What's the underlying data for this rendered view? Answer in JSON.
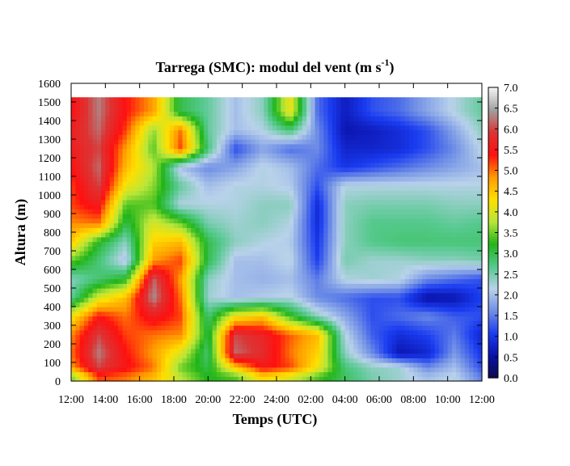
{
  "chart_data": {
    "type": "heatmap",
    "title": "Tarrega (SMC): modul del vent (m s",
    "title_sup": "-1",
    "title_end": ")",
    "xlabel": "Temps (UTC)",
    "ylabel": "Altura (m)",
    "x_ticks": [
      "12:00",
      "14:00",
      "16:00",
      "18:00",
      "20:00",
      "22:00",
      "24:00",
      "02:00",
      "04:00",
      "06:00",
      "08:00",
      "10:00",
      "12:00"
    ],
    "y_ticks": [
      "0",
      "100",
      "200",
      "300",
      "400",
      "500",
      "600",
      "700",
      "800",
      "900",
      "1000",
      "1100",
      "1200",
      "1300",
      "1400",
      "1500",
      "1600"
    ],
    "ylim": [
      0,
      1600
    ],
    "data_top_m": 1525,
    "colorbar": {
      "ticks": [
        "0.0",
        "0.5",
        "1.0",
        "1.5",
        "2.0",
        "2.5",
        "3.0",
        "3.5",
        "4.0",
        "4.5",
        "5.0",
        "5.5",
        "6.0",
        "6.5",
        "7.0"
      ],
      "range": [
        0,
        7
      ],
      "colors": [
        "#0c0a4a",
        "#0a10a8",
        "#1a3cf0",
        "#6f8ee6",
        "#b9d2ea",
        "#54c98c",
        "#22b51a",
        "#b8e63a",
        "#ffe000",
        "#ff9a00",
        "#ff1010",
        "#dc3434",
        "#a0a0a0",
        "#f4f4f4"
      ]
    },
    "x_hours": [
      0,
      2,
      4,
      6,
      8,
      10,
      12,
      14,
      16,
      18,
      20,
      22,
      24
    ],
    "z_description_rows_m": [
      25,
      75,
      150,
      250,
      350,
      450,
      550,
      650,
      750,
      850,
      950,
      1050,
      1150,
      1250,
      1350,
      1450
    ],
    "z_rows": [
      [
        3.5,
        5.2,
        5.0,
        4.6,
        3.8,
        3.2,
        3.4,
        4.4,
        4.0,
        3.4,
        2.9,
        2.5,
        2.3,
        2.0,
        2.2,
        1.5
      ],
      [
        4.8,
        6.0,
        5.5,
        5.0,
        3.5,
        3.0,
        4.5,
        5.5,
        5.2,
        4.2,
        2.8,
        2.4,
        2.3,
        1.6,
        2.0,
        1.2
      ],
      [
        5.0,
        6.3,
        5.4,
        4.8,
        4.0,
        2.8,
        6.2,
        5.8,
        5.0,
        4.4,
        2.4,
        1.6,
        0.6,
        0.8,
        1.7,
        1.0
      ],
      [
        4.9,
        6.0,
        5.2,
        5.0,
        4.9,
        3.0,
        6.0,
        5.7,
        5.1,
        4.6,
        2.2,
        1.3,
        0.9,
        1.1,
        1.5,
        0.8
      ],
      [
        4.2,
        5.4,
        5.0,
        5.6,
        5.2,
        2.8,
        4.2,
        4.5,
        3.3,
        2.4,
        1.8,
        1.2,
        1.4,
        1.6,
        1.3,
        1.2
      ],
      [
        2.6,
        4.0,
        4.6,
        6.4,
        5.0,
        2.3,
        2.0,
        2.1,
        2.2,
        1.6,
        1.4,
        1.2,
        1.2,
        0.5,
        0.6,
        1.1
      ],
      [
        2.4,
        2.8,
        3.2,
        6.2,
        4.8,
        2.4,
        2.0,
        1.9,
        2.0,
        1.5,
        2.2,
        2.3,
        2.2,
        1.6,
        1.4,
        1.2
      ],
      [
        3.5,
        2.8,
        2.0,
        4.8,
        5.2,
        3.0,
        2.0,
        2.0,
        2.2,
        1.1,
        2.5,
        2.3,
        2.3,
        2.4,
        2.4,
        2.5
      ],
      [
        4.5,
        3.2,
        2.4,
        4.4,
        4.6,
        3.0,
        2.4,
        2.2,
        2.1,
        1.0,
        2.4,
        2.7,
        2.8,
        2.8,
        2.8,
        2.8
      ],
      [
        4.9,
        5.0,
        3.0,
        4.0,
        3.5,
        2.5,
        2.3,
        2.4,
        2.2,
        0.9,
        2.4,
        2.7,
        2.7,
        2.7,
        2.6,
        2.7
      ],
      [
        5.2,
        5.6,
        3.4,
        3.4,
        2.2,
        2.2,
        2.2,
        2.4,
        2.4,
        0.9,
        2.4,
        2.5,
        2.5,
        2.5,
        2.4,
        2.4
      ],
      [
        5.2,
        6.0,
        4.2,
        3.6,
        2.6,
        2.0,
        2.2,
        2.2,
        2.1,
        1.2,
        2.2,
        2.2,
        2.2,
        2.2,
        2.2,
        2.2
      ],
      [
        5.4,
        6.2,
        4.6,
        3.8,
        2.0,
        1.6,
        1.8,
        2.2,
        2.0,
        1.4,
        1.0,
        1.2,
        1.4,
        1.6,
        1.8,
        2.0
      ],
      [
        5.6,
        6.0,
        4.8,
        3.4,
        5.2,
        2.8,
        1.2,
        1.8,
        1.4,
        1.6,
        0.8,
        0.8,
        0.9,
        1.2,
        1.6,
        2.2
      ],
      [
        5.6,
        6.2,
        5.2,
        3.6,
        5.0,
        2.6,
        2.0,
        2.2,
        2.8,
        1.6,
        0.6,
        0.7,
        0.9,
        1.2,
        1.8,
        2.4
      ],
      [
        5.4,
        6.3,
        5.4,
        4.8,
        3.0,
        2.6,
        2.0,
        2.4,
        4.2,
        1.4,
        0.7,
        1.2,
        1.4,
        1.8,
        2.2,
        2.6
      ]
    ]
  }
}
